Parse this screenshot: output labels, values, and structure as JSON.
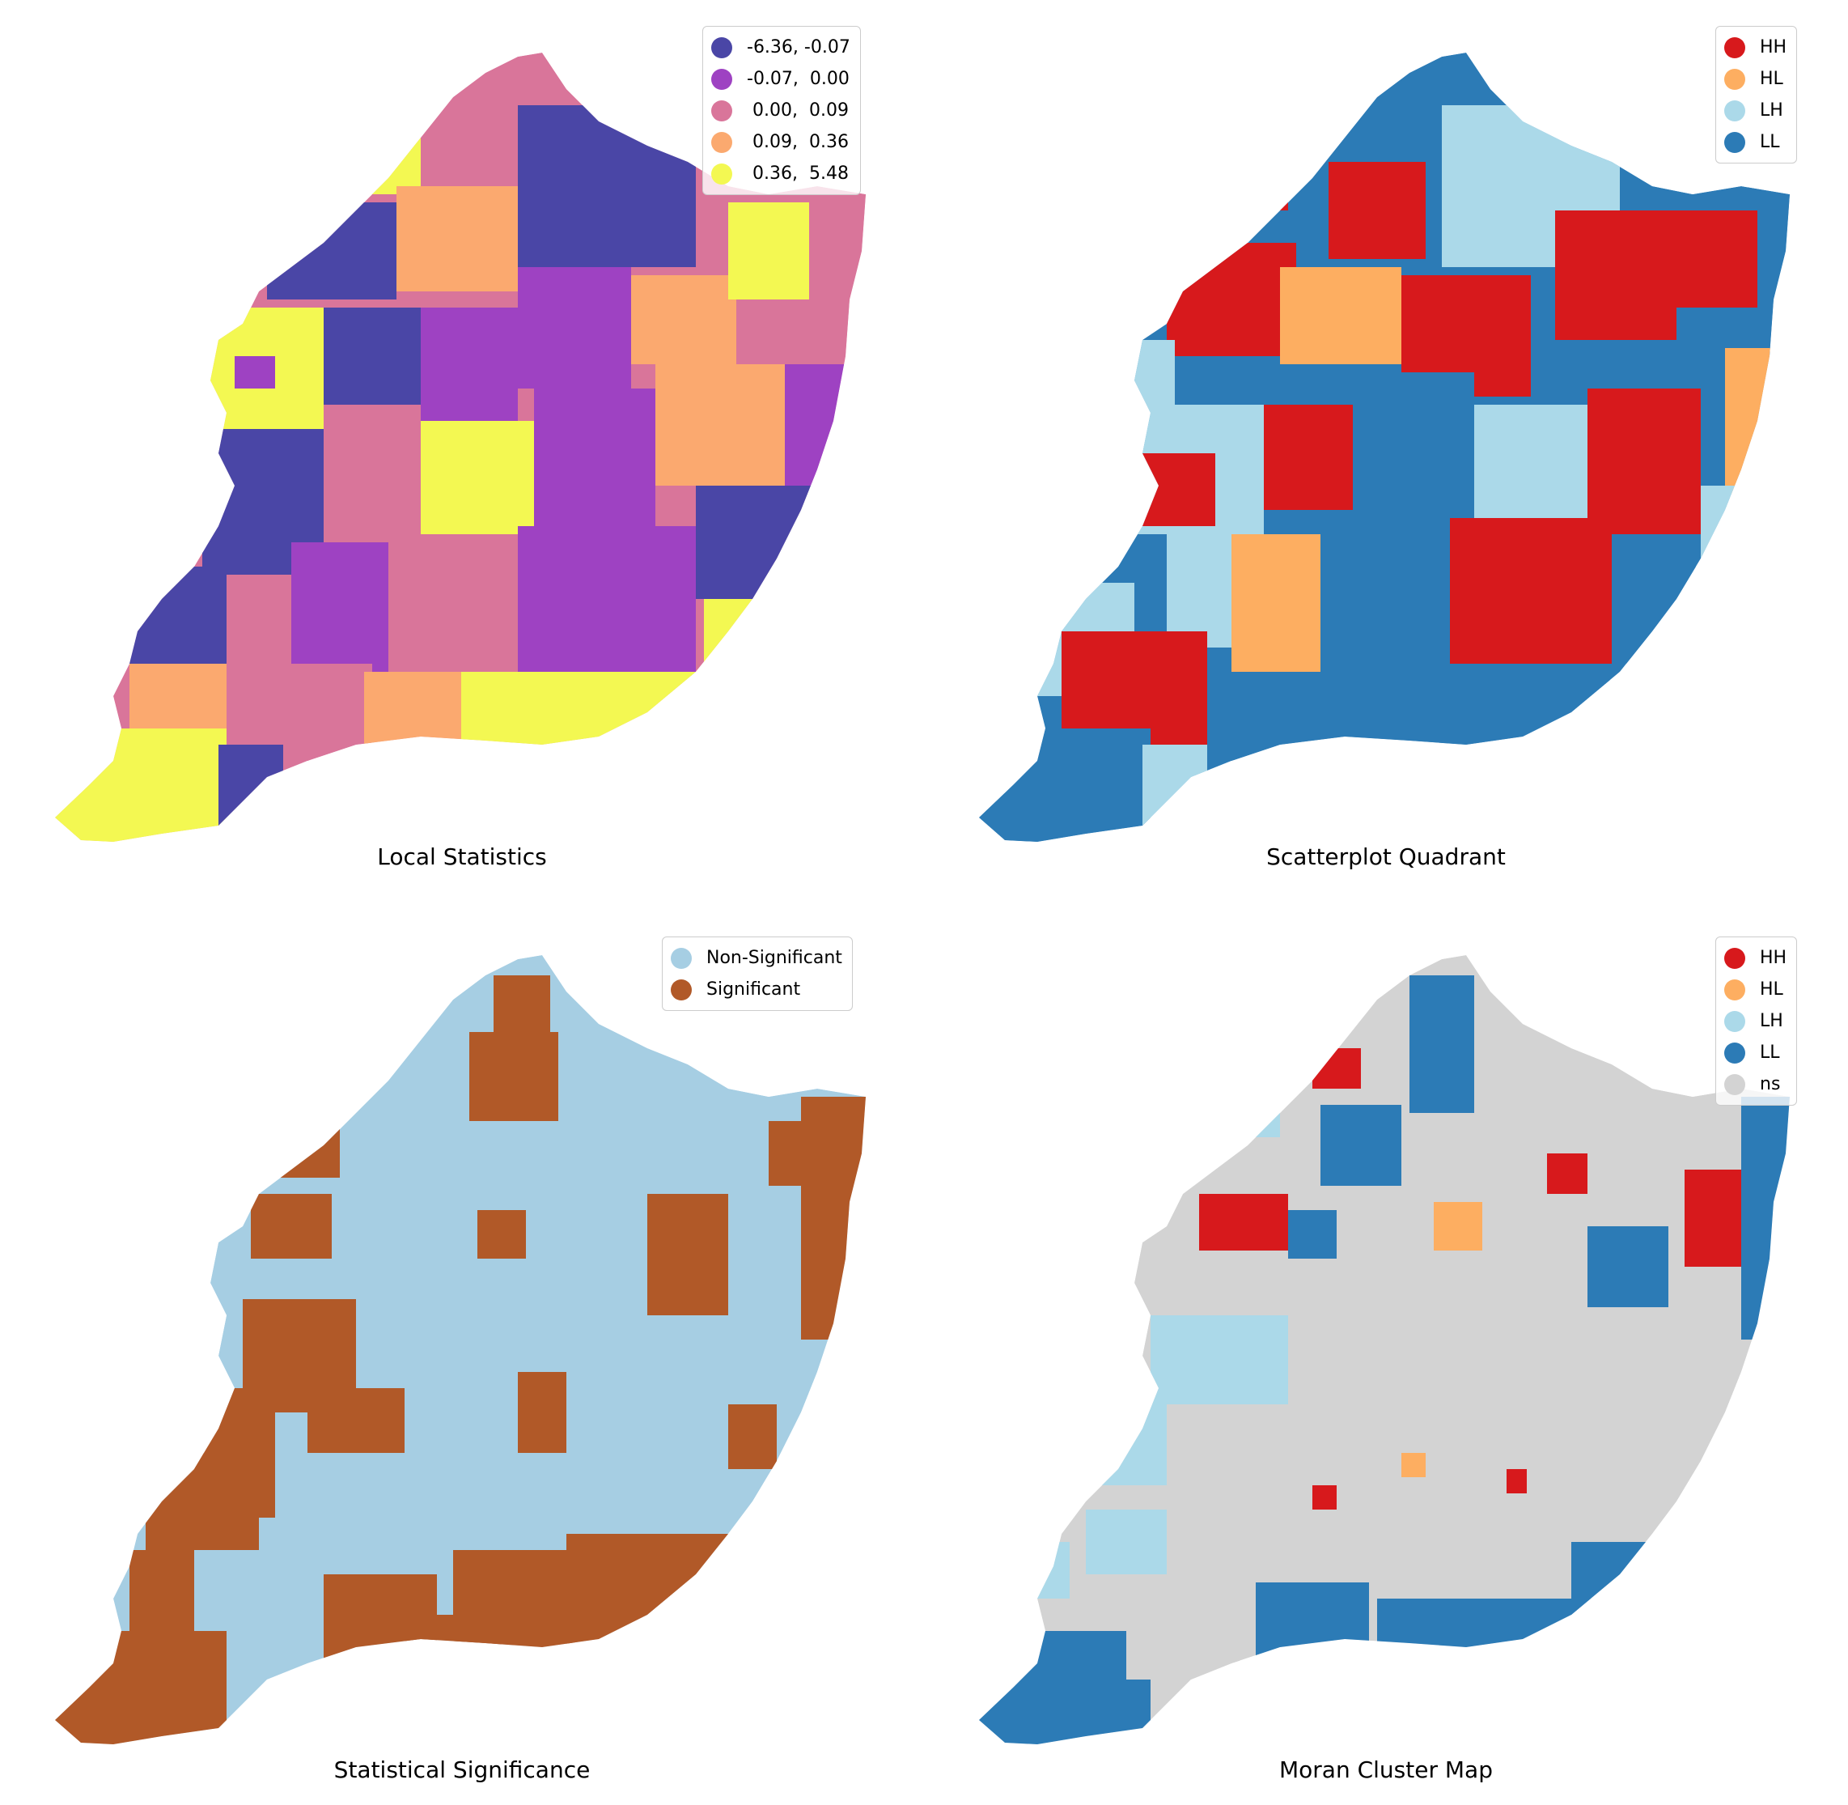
{
  "panels": [
    {
      "title": "Local Statistics",
      "legend": [
        {
          "label": "-6.36, -0.07",
          "color": "#4a46a6"
        },
        {
          "label": "-0.07,  0.00",
          "color": "#9e42c2"
        },
        {
          "label": " 0.00,  0.09",
          "color": "#d9759a"
        },
        {
          "label": " 0.09,  0.36",
          "color": "#fba96f"
        },
        {
          "label": " 0.36,  5.48",
          "color": "#f3f852"
        }
      ]
    },
    {
      "title": "Scatterplot Quadrant",
      "legend": [
        {
          "label": "HH",
          "color": "#d7191c"
        },
        {
          "label": "HL",
          "color": "#fdae61"
        },
        {
          "label": "LH",
          "color": "#abd9e9"
        },
        {
          "label": "LL",
          "color": "#2c7bb6"
        }
      ]
    },
    {
      "title": "Statistical Significance",
      "legend": [
        {
          "label": "Non-Significant",
          "color": "#a6cee3"
        },
        {
          "label": "Significant",
          "color": "#b15928"
        }
      ]
    },
    {
      "title": "Moran Cluster Map",
      "legend": [
        {
          "label": "HH",
          "color": "#d7191c"
        },
        {
          "label": "HL",
          "color": "#fdae61"
        },
        {
          "label": "LH",
          "color": "#abd9e9"
        },
        {
          "label": "LL",
          "color": "#2c7bb6"
        },
        {
          "label": "ns",
          "color": "#d3d3d3"
        }
      ]
    }
  ]
}
